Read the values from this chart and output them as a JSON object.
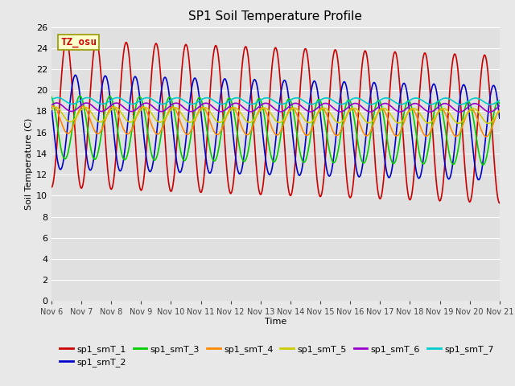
{
  "title": "SP1 Soil Temperature Profile",
  "xlabel": "Time",
  "ylabel": "Soil Temperature (C)",
  "ylim": [
    0,
    26
  ],
  "xtick_labels": [
    "Nov 6",
    "Nov 7",
    "Nov 8",
    "Nov 9",
    "Nov 10",
    "Nov 11",
    "Nov 12",
    "Nov 13",
    "Nov 14",
    "Nov 15",
    "Nov 16",
    "Nov 17",
    "Nov 18",
    "Nov 19",
    "Nov 20",
    "Nov 21"
  ],
  "series_params": {
    "sp1_smT_1": {
      "color": "#cc0000",
      "amplitude": 7.0,
      "mean": 17.8,
      "phase": 0.25,
      "trend": -0.1
    },
    "sp1_smT_2": {
      "color": "#0000cc",
      "amplitude": 4.5,
      "mean": 17.0,
      "phase": 0.55,
      "trend": -0.07
    },
    "sp1_smT_3": {
      "color": "#00cc00",
      "amplitude": 3.0,
      "mean": 16.5,
      "phase": 0.7,
      "trend": -0.04
    },
    "sp1_smT_4": {
      "color": "#ff8800",
      "amplitude": 1.3,
      "mean": 17.2,
      "phase": 0.8,
      "trend": -0.02
    },
    "sp1_smT_5": {
      "color": "#cccc00",
      "amplitude": 0.7,
      "mean": 17.7,
      "phase": 0.88,
      "trend": -0.01
    },
    "sp1_smT_6": {
      "color": "#9900cc",
      "amplitude": 0.4,
      "mean": 18.4,
      "phase": 0.92,
      "trend": -0.004
    },
    "sp1_smT_7": {
      "color": "#00cccc",
      "amplitude": 0.3,
      "mean": 19.0,
      "phase": 0.95,
      "trend": -0.003
    }
  },
  "annotation": {
    "text": "TZ_osu",
    "fontsize": 9,
    "color": "#cc0000",
    "bg_color": "#ffffcc",
    "edge_color": "#999900"
  },
  "fig_bg_color": "#e8e8e8",
  "plot_bg_color": "#e0e0e0",
  "grid_color": "#ffffff",
  "legend_ncol": 6,
  "legend_fontsize": 8
}
